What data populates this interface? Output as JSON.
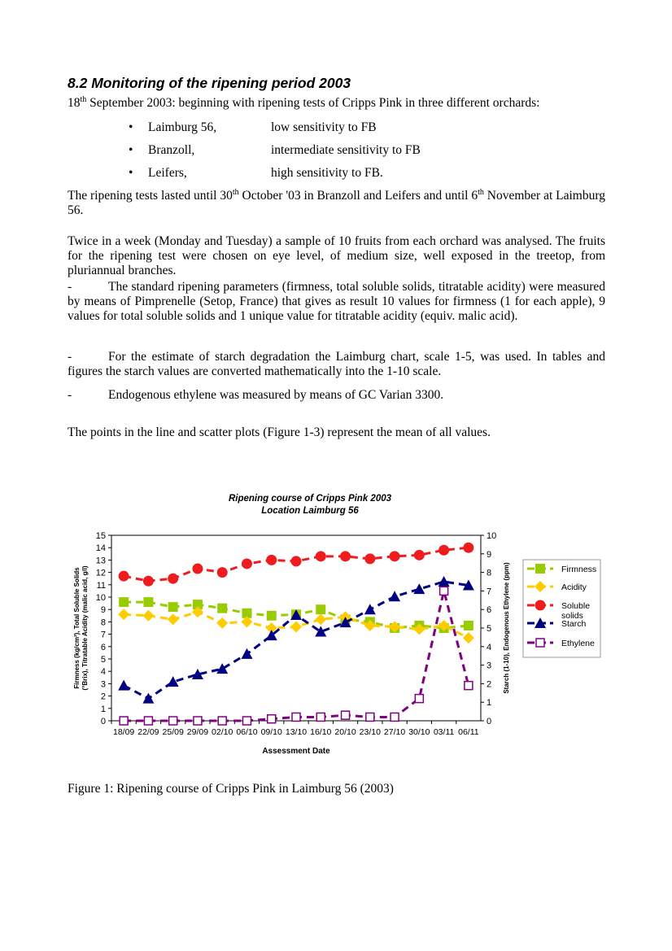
{
  "heading": "8.2 Monitoring of the ripening period 2003",
  "intro": {
    "parts": [
      "18",
      "th",
      " September 2003: beginning with ripening tests of Cripps Pink in three different orchards:"
    ]
  },
  "bullets": [
    {
      "name": "Laimburg 56,",
      "note": "low sensitivity to FB"
    },
    {
      "name": "Branzoll,",
      "note": "intermediate sensitivity to FB"
    },
    {
      "name": "Leifers,",
      "note": "high sensitivity to FB."
    }
  ],
  "paragraphs": [
    {
      "parts": [
        "The ripening tests lasted until 30",
        "th",
        " October '03 in Branzoll and Leifers and until 6",
        "th",
        " November at Laimburg 56."
      ]
    },
    {
      "parts": [
        "Twice in a week (Monday and Tuesday) a sample of 10 fruits from each orchard was analysed. The fruits for the ripening test were chosen on eye level, of medium size, well exposed in the treetop, from pluriannual branches."
      ]
    }
  ],
  "dash_items": [
    {
      "marker": "-",
      "text": "The standard ripening parameters (firmness, total soluble solids, titratable acidity) were measured by means of Pimprenelle (Setop, France) that gives as result 10 values for firmness (1 for each apple), 9 values for total soluble solids and 1 unique value for titratable acidity (equiv. malic acid)."
    },
    {
      "marker": "-",
      "text": "For the estimate of starch degradation the Laimburg chart, scale 1-5, was used. In tables and figures the starch values are converted mathematically into the 1-10 scale."
    },
    {
      "marker": "-",
      "text": "Endogenous ethylene was measured by means of GC Varian 3300."
    }
  ],
  "closing": "The points in the line and scatter plots (Figure 1-3) represent the mean of all values.",
  "chart_data": {
    "type": "line",
    "title": [
      "Ripening course of Cripps Pink 2003",
      "Location Laimburg 56"
    ],
    "xlabel": "Assessment Date",
    "ylabel": [
      "Firmness (kg/cm²), Total Soluble Solids",
      "(°Brix), Titratable Acidity (malic acid, g/l)"
    ],
    "y2label": "Starch (1-10), Endogenous Ethylene (ppm)",
    "categories": [
      "18/09",
      "22/09",
      "25/09",
      "29/09",
      "02/10",
      "06/10",
      "09/10",
      "13/10",
      "16/10",
      "20/10",
      "23/10",
      "27/10",
      "30/10",
      "03/11",
      "06/11"
    ],
    "ylim": [
      0,
      15
    ],
    "yticks": [
      0,
      1,
      2,
      3,
      4,
      5,
      6,
      7,
      8,
      9,
      10,
      11,
      12,
      13,
      14,
      15
    ],
    "y2lim": [
      0,
      10
    ],
    "y2ticks": [
      0,
      1,
      2,
      3,
      4,
      5,
      6,
      7,
      8,
      9,
      10
    ],
    "grid": false,
    "legend": "right",
    "series": [
      {
        "name": "Firmness",
        "color": "#99cc00",
        "marker": "square",
        "values": [
          9.6,
          9.6,
          9.2,
          9.4,
          9.1,
          8.7,
          8.5,
          8.6,
          9.0,
          8.2,
          8.0,
          7.5,
          7.7,
          7.5,
          7.7
        ]
      },
      {
        "name": "Acidity",
        "color": "#ffcc00",
        "marker": "diamond",
        "values": [
          8.6,
          8.5,
          8.2,
          8.8,
          7.9,
          8.0,
          7.5,
          7.6,
          8.2,
          8.4,
          7.7,
          7.6,
          7.4,
          7.7,
          6.7
        ]
      },
      {
        "name": "Soluble solids",
        "color": "#ee1c1c",
        "marker": "circle",
        "values": [
          11.7,
          11.3,
          11.5,
          12.3,
          12.0,
          12.7,
          13.0,
          12.9,
          13.3,
          13.3,
          13.1,
          13.3,
          13.4,
          13.8,
          14.0
        ]
      },
      {
        "name": "Starch",
        "color": "#000080",
        "marker": "triangle",
        "axis": "y2",
        "values": [
          1.9,
          1.2,
          2.1,
          2.5,
          2.8,
          3.6,
          4.6,
          5.7,
          4.8,
          5.3,
          6.0,
          6.7,
          7.1,
          7.5,
          7.3
        ]
      },
      {
        "name": "Ethylene",
        "color": "#800080",
        "marker": "open-square",
        "axis": "y2",
        "values": [
          0,
          0,
          0,
          0,
          0,
          0,
          0.1,
          0.2,
          0.2,
          0.3,
          0.2,
          0.2,
          1.2,
          7.0,
          1.9
        ]
      }
    ]
  },
  "caption": "Figure 1: Ripening course of Cripps Pink in Laimburg 56 (2003)"
}
